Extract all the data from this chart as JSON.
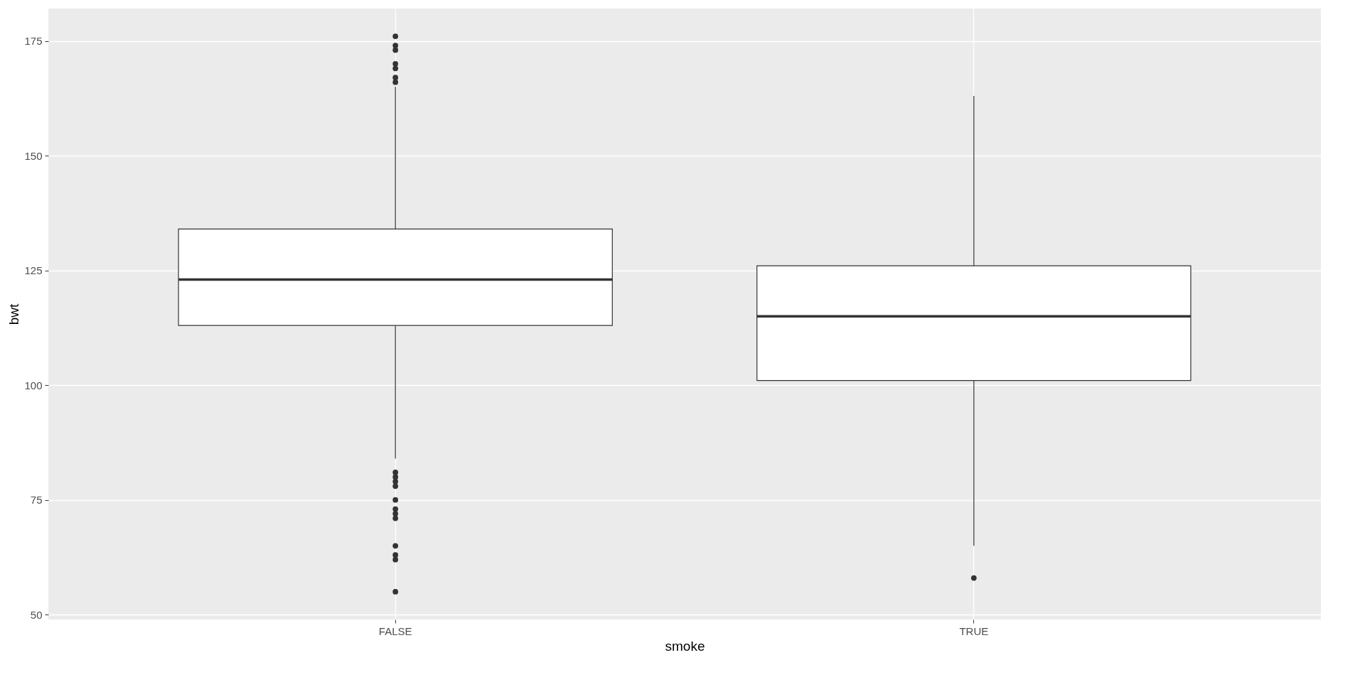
{
  "chart_data": {
    "type": "box",
    "xlabel": "smoke",
    "ylabel": "bwt",
    "categories": [
      "FALSE",
      "TRUE"
    ],
    "boxes": [
      {
        "low": 84,
        "q1": 113,
        "median": 123,
        "q3": 134,
        "high": 165,
        "outliers": [
          176,
          174,
          173,
          170,
          169,
          167,
          166,
          81,
          80,
          79,
          78,
          75,
          73,
          72,
          71,
          65,
          63,
          62,
          55
        ]
      },
      {
        "low": 65,
        "q1": 101,
        "median": 115,
        "q3": 126,
        "high": 163,
        "outliers": [
          58
        ]
      }
    ],
    "ylim": [
      48.95,
      182.05
    ],
    "yticks": [
      50,
      75,
      100,
      125,
      150,
      175
    ],
    "grid": true
  }
}
